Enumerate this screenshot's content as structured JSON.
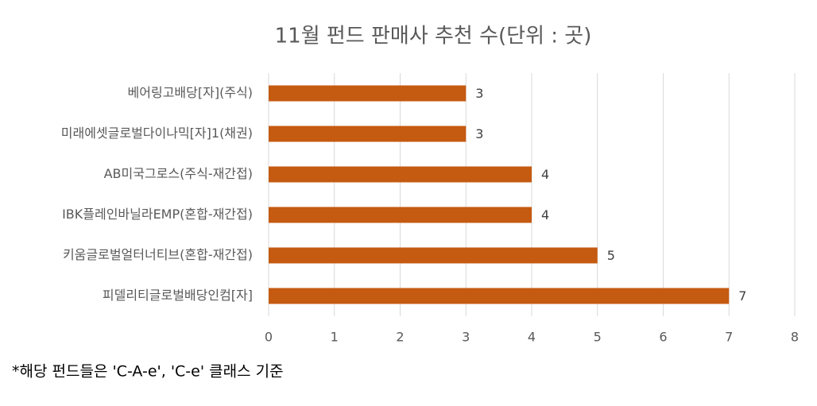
{
  "chart_data": {
    "type": "bar",
    "orientation": "horizontal",
    "title": "11월 펀드 판매사 추천 수(단위 : 곳)",
    "categories": [
      "베어링고배당[자](주식)",
      "미래에셋글로벌다이나믹[자]1(채권)",
      "AB미국그로스(주식-재간접)",
      "IBK플레인바닐라EMP(혼합-재간접)",
      "키움글로벌얼터너티브(혼합-재간접)",
      "피델리티글로벌배당인컴[자]"
    ],
    "values": [
      3,
      3,
      4,
      4,
      5,
      7
    ],
    "color": "#c55a11",
    "xlim": [
      0,
      8
    ],
    "xticks": [
      0,
      1,
      2,
      3,
      4,
      5,
      6,
      7,
      8
    ],
    "grid": true,
    "annotation": "*해당 펀드들은 'C-A-e', 'C-e'  클래스 기준"
  }
}
